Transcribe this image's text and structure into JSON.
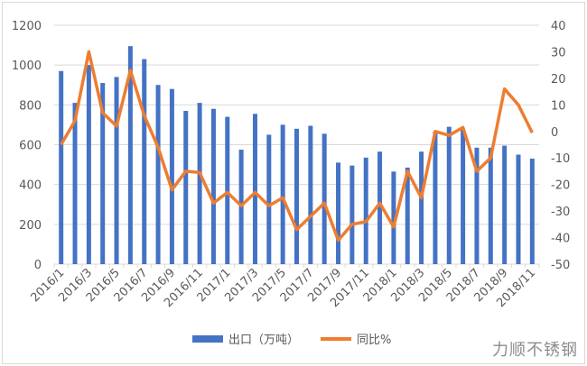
{
  "chart_data": {
    "type": "bar+line",
    "categories": [
      "2016/1",
      "2016/2",
      "2016/3",
      "2016/4",
      "2016/5",
      "2016/6",
      "2016/7",
      "2016/8",
      "2016/9",
      "2016/10",
      "2016/11",
      "2016/12",
      "2017/1",
      "2017/2",
      "2017/3",
      "2017/4",
      "2017/5",
      "2017/6",
      "2017/7",
      "2017/8",
      "2017/9",
      "2017/10",
      "2017/11",
      "2017/12",
      "2018/1",
      "2018/2",
      "2018/3",
      "2018/4",
      "2018/5",
      "2018/6",
      "2018/7",
      "2018/8",
      "2018/9",
      "2018/10",
      "2018/11"
    ],
    "series": [
      {
        "name": "出口（万吨）",
        "type": "bar",
        "axis": "left",
        "color": "#4472C4",
        "values": [
          970,
          810,
          1000,
          910,
          940,
          1095,
          1030,
          900,
          880,
          770,
          810,
          780,
          740,
          575,
          755,
          650,
          700,
          680,
          695,
          655,
          510,
          495,
          535,
          565,
          465,
          485,
          565,
          665,
          690,
          680,
          585,
          585,
          595,
          550,
          530
        ]
      },
      {
        "name": "同比%",
        "type": "line",
        "axis": "right",
        "color": "#ED7D31",
        "values": [
          -5,
          4,
          30,
          7,
          2,
          23,
          6,
          -6,
          -22,
          -15,
          -15.5,
          -27,
          -23,
          -28,
          -23,
          -28,
          -25,
          -37,
          -32,
          -27,
          -41,
          -35,
          -34,
          -27,
          -36,
          -15,
          -25,
          0,
          -1.5,
          1.5,
          -15,
          -10,
          16,
          10,
          -0.5
        ]
      }
    ],
    "y_left": {
      "range": [
        0,
        1200
      ],
      "ticks": [
        "0",
        "200",
        "400",
        "600",
        "800",
        "1000",
        "1200"
      ]
    },
    "y_right": {
      "range": [
        -50,
        40
      ],
      "ticks": [
        "-50",
        "-40",
        "-30",
        "-20",
        "-10",
        "0",
        "10",
        "20",
        "30",
        "40"
      ]
    },
    "x_tick_labels": [
      "2016/1",
      "2016/3",
      "2016/5",
      "2016/7",
      "2016/9",
      "2016/11",
      "2017/1",
      "2017/3",
      "2017/5",
      "2017/7",
      "2017/9",
      "2017/11",
      "2018/1",
      "2018/3",
      "2018/5",
      "2018/7",
      "2018/9",
      "2018/11"
    ],
    "grid": true,
    "legend": "bottom"
  },
  "watermark": "力顺不锈钢"
}
